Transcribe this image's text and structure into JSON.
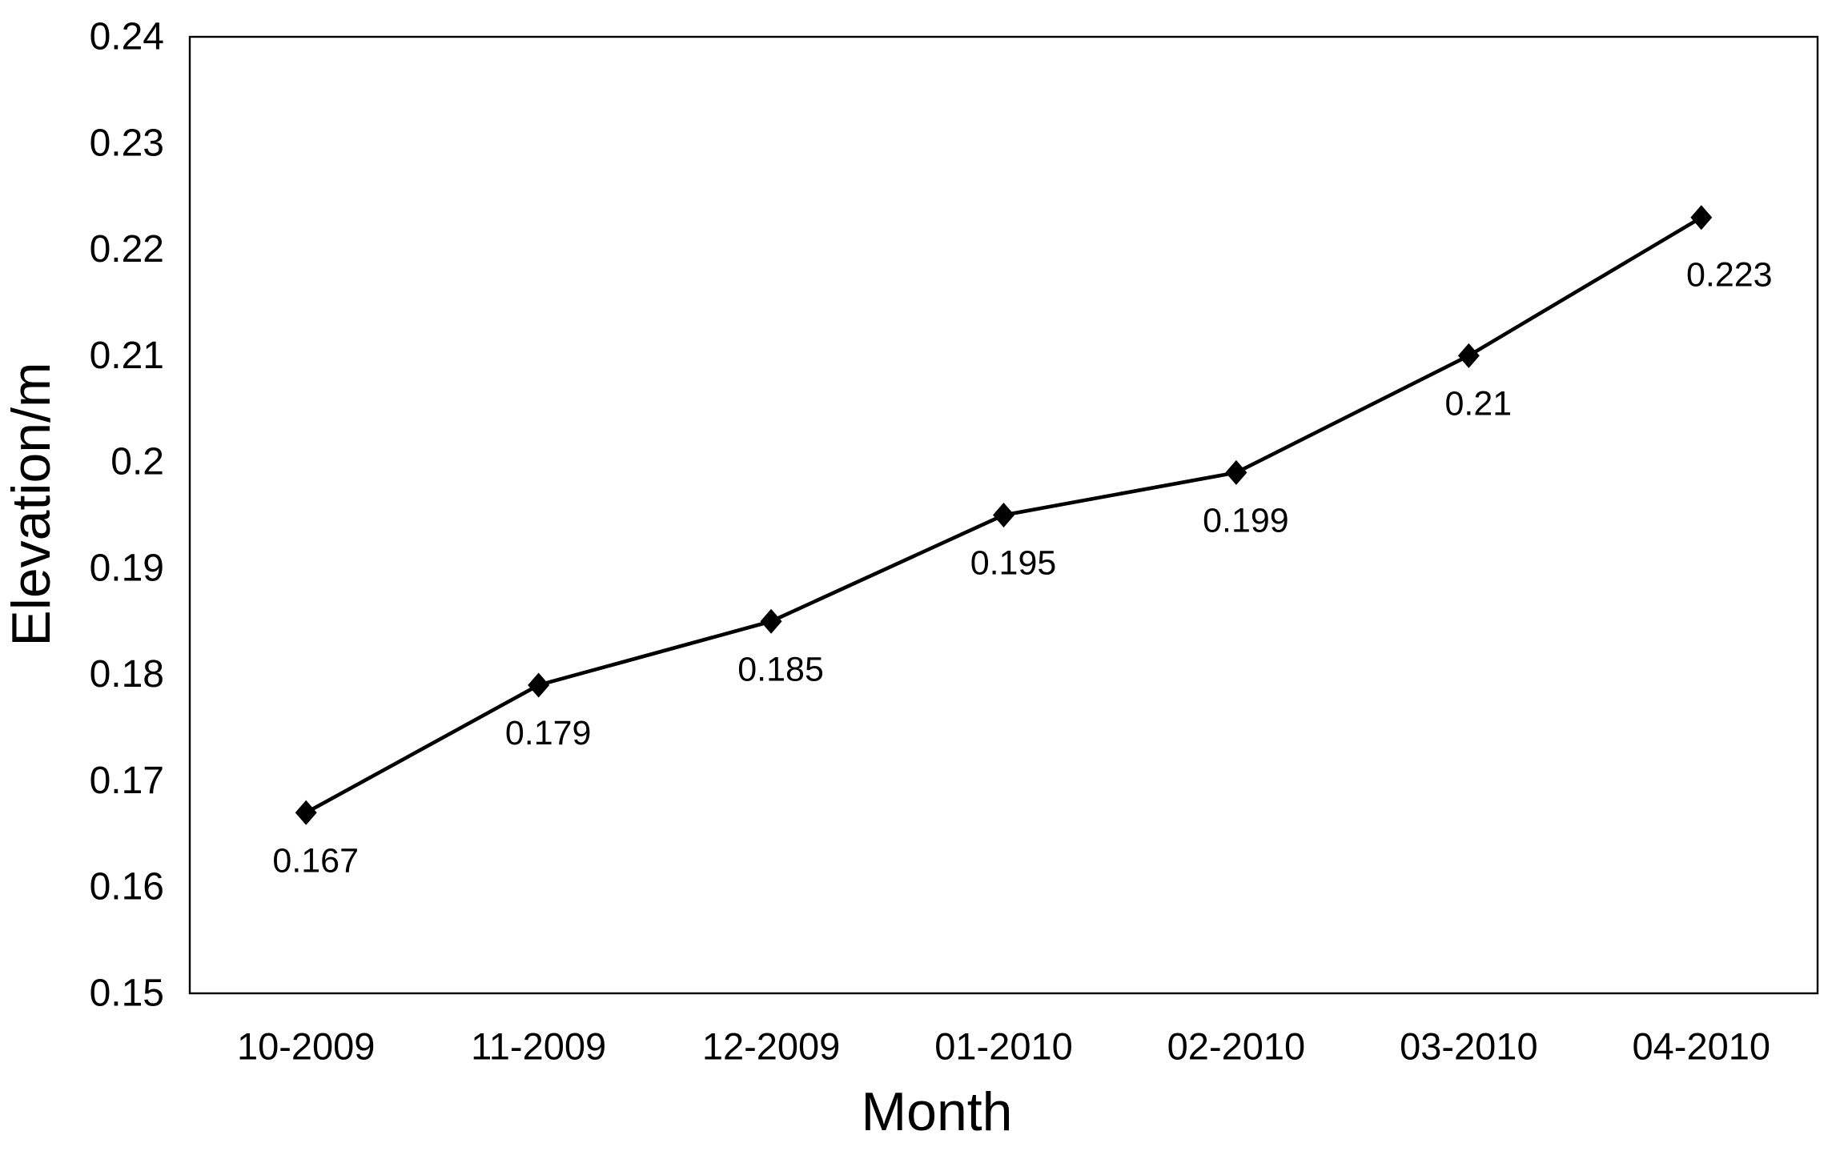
{
  "chart_data": {
    "type": "line",
    "categories": [
      "10-2009",
      "11-2009",
      "12-2009",
      "01-2010",
      "02-2010",
      "03-2010",
      "04-2010"
    ],
    "values": [
      0.167,
      0.179,
      0.185,
      0.195,
      0.199,
      0.21,
      0.223
    ],
    "point_labels": [
      "0.167",
      "0.179",
      "0.185",
      "0.195",
      "0.199",
      "0.21",
      "0.223"
    ],
    "xlabel": "Month",
    "ylabel": "Elevation/m",
    "ylim": [
      0.15,
      0.24
    ],
    "y_tick_step": 0.01,
    "y_tick_labels": [
      "0.24",
      "0.23",
      "0.22",
      "0.21",
      "0.2",
      "0.19",
      "0.18",
      "0.17",
      "0.16",
      "0.15"
    ],
    "grid": false,
    "legend_position": "none",
    "marker": "diamond",
    "colors": {
      "line": "#000000",
      "marker": "#000000",
      "text": "#000000",
      "frame": "#000000",
      "background": "#ffffff"
    }
  }
}
